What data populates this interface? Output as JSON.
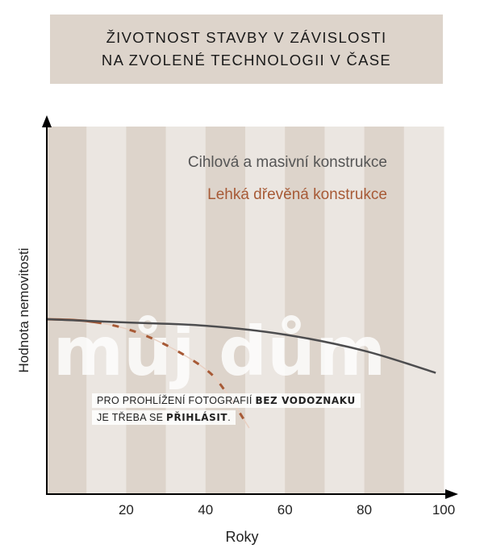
{
  "chart_data": {
    "type": "line",
    "title": [
      "ŽIVOTNOST STAVBY V ZÁVISLOSTI",
      "NA ZVOLENÉ TECHNOLOGII V ČASE"
    ],
    "xlabel": "Roky",
    "ylabel": "Hodnota nemovitosti",
    "xlim": [
      0,
      100
    ],
    "ylim": [
      0,
      100
    ],
    "xticks": [
      20,
      40,
      60,
      80,
      100
    ],
    "grid": "alternating vertical bands every 10 years",
    "legend_placement": "top-right",
    "series": [
      {
        "name": "Cihlová a masivní konstrukce",
        "color": "#4d4d4f",
        "x": [
          0,
          20,
          40,
          60,
          80,
          98
        ],
        "y": [
          47.6,
          46.7,
          45.8,
          43.4,
          39,
          33
        ]
      },
      {
        "name": "Lehká dřevěná konstrukce",
        "color": "#a75a36",
        "x": [
          0,
          10,
          20,
          30,
          40,
          45,
          51
        ],
        "y": [
          47.6,
          47.1,
          45,
          40.6,
          34,
          28,
          18
        ]
      }
    ]
  },
  "watermark": {
    "logo": "můj dům",
    "line1_normal": "PRO PROHLÍŽENÍ FOTOGRAFIÍ ",
    "line1_bold": "BEZ VODOZNAKU",
    "line2_normal": "JE TŘEBA SE ",
    "line2_bold": "PŘIHLÁSIT",
    "line2_end": "."
  },
  "colors": {
    "band_dark": "#ddd4cb",
    "band_light": "#ebe6e1",
    "title_bg": "#ddd4cb"
  }
}
